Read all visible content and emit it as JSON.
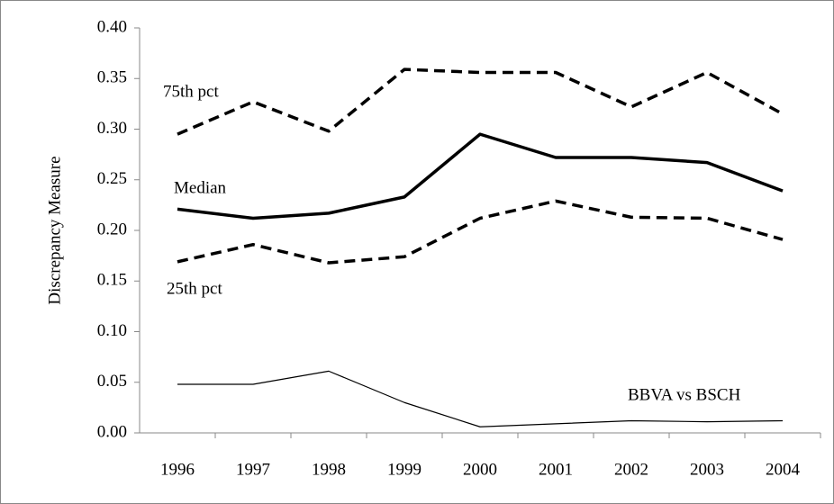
{
  "chart_data": {
    "type": "line",
    "y_axis_label": "Discrepancy Measure",
    "categories": [
      "1996",
      "1997",
      "1998",
      "1999",
      "2000",
      "2001",
      "2002",
      "2003",
      "2004"
    ],
    "series": [
      {
        "name": "75th pct",
        "color": "#000000",
        "line_style": "dashed",
        "line_weight": "bold",
        "values": [
          0.295,
          0.327,
          0.298,
          0.359,
          0.356,
          0.356,
          0.322,
          0.356,
          0.315
        ]
      },
      {
        "name": "Median",
        "color": "#000000",
        "line_style": "solid",
        "line_weight": "bold",
        "values": [
          0.221,
          0.212,
          0.217,
          0.233,
          0.295,
          0.272,
          0.272,
          0.267,
          0.239
        ]
      },
      {
        "name": "25th pct",
        "color": "#000000",
        "line_style": "dashed",
        "line_weight": "bold",
        "values": [
          0.169,
          0.186,
          0.168,
          0.174,
          0.212,
          0.229,
          0.213,
          0.212,
          0.191
        ]
      },
      {
        "name": "BBVA vs BSCH",
        "color": "#000000",
        "line_style": "solid",
        "line_weight": "thin",
        "values": [
          0.048,
          0.048,
          0.061,
          0.03,
          0.006,
          0.009,
          0.012,
          0.011,
          0.012
        ]
      }
    ],
    "ylim": [
      0,
      0.4
    ],
    "yticks": [
      {
        "value": 0,
        "label": "0.00"
      },
      {
        "value": 0.05,
        "label": "0.05"
      },
      {
        "value": 0.1,
        "label": "0.10"
      },
      {
        "value": 0.15,
        "label": "0.15"
      },
      {
        "value": 0.2,
        "label": "0.20"
      },
      {
        "value": 0.25,
        "label": "0.25"
      },
      {
        "value": 0.3,
        "label": "0.30"
      },
      {
        "value": 0.35,
        "label": "0.35"
      },
      {
        "value": 0.4,
        "label": "0.40"
      }
    ],
    "grid": false
  }
}
